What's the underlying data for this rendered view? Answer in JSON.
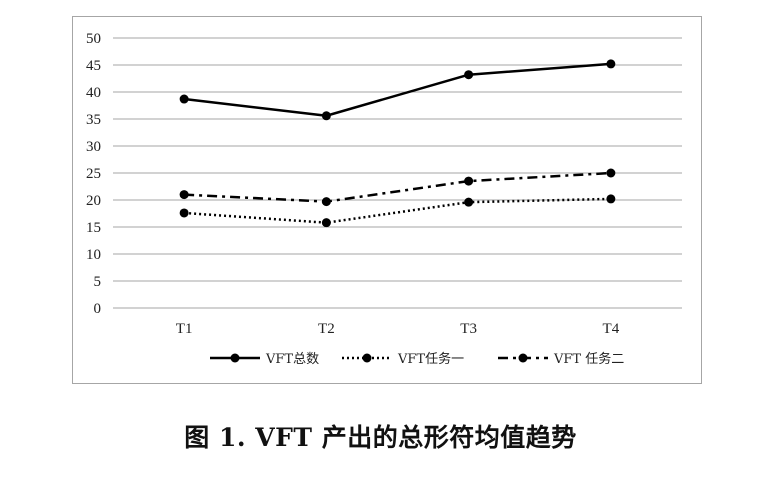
{
  "caption": "图 1. VFT 产出的总形符均值趋势",
  "chart_data": {
    "type": "line",
    "title": "",
    "xlabel": "",
    "ylabel": "",
    "categories": [
      "T1",
      "T2",
      "T3",
      "T4"
    ],
    "ylim": [
      0,
      50
    ],
    "yticks": [
      0,
      5,
      10,
      15,
      20,
      25,
      30,
      35,
      40,
      45,
      50
    ],
    "grid": true,
    "legend_position": "bottom",
    "series": [
      {
        "name": "VFT总数",
        "values": [
          38.7,
          35.6,
          43.2,
          45.2
        ],
        "line_style": "solid",
        "color": "#000000"
      },
      {
        "name": "VFT任务一",
        "values": [
          17.6,
          15.8,
          19.6,
          20.2
        ],
        "line_style": "dotted",
        "color": "#000000"
      },
      {
        "name": "VFT 任务二",
        "values": [
          21.0,
          19.7,
          23.5,
          25.0
        ],
        "line_style": "dashdot",
        "color": "#000000"
      }
    ]
  }
}
